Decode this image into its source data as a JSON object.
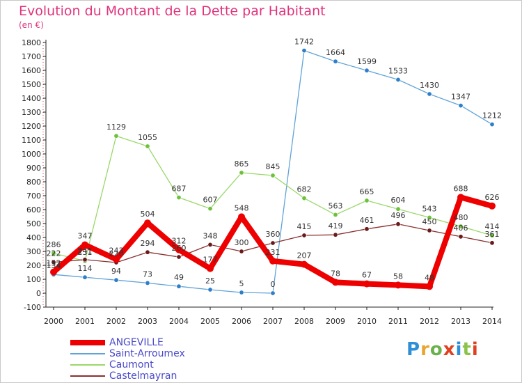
{
  "title": "Evolution du Montant de la Dette par Habitant",
  "subtitle": "(en €)",
  "logo": {
    "text": "Proxiti",
    "colors": [
      "#2f8fd6",
      "#e8a530",
      "#6ab04c",
      "#e04020",
      "#2f8fd6",
      "#8bc34a",
      "#e04020"
    ]
  },
  "chart_data": {
    "type": "line",
    "title": "Evolution du Montant de la Dette par Habitant",
    "ylabel": "(en €)",
    "xlabel": "",
    "x": [
      "2000",
      "2001",
      "2002",
      "2003",
      "2004",
      "2005",
      "2006",
      "2007",
      "2008",
      "2009",
      "2010",
      "2011",
      "2012",
      "2013",
      "2014"
    ],
    "ylim": [
      -100,
      1800
    ],
    "yticks": [
      -100,
      0,
      100,
      200,
      300,
      400,
      500,
      600,
      700,
      800,
      900,
      1000,
      1100,
      1200,
      1300,
      1400,
      1500,
      1600,
      1700,
      1800
    ],
    "grid": false,
    "legend_position": "bottom-left",
    "series": [
      {
        "name": "ANGEVILLE",
        "color": "#ee0000",
        "width": 8,
        "values": [
          152,
          347,
          243,
          504,
          312,
          177,
          548,
          231,
          207,
          78,
          67,
          58,
          48,
          688,
          626
        ],
        "labels": [
          "152",
          "347",
          "243",
          "504",
          "312",
          "177",
          "548",
          "231",
          "207",
          "78",
          "67",
          "58",
          "48",
          "688",
          "626"
        ]
      },
      {
        "name": "Saint-Arroumex",
        "color": "#5fa3d8",
        "width": 1.3,
        "markerColor": "#2f7fc8",
        "values": [
          134,
          114,
          94,
          73,
          49,
          25,
          5,
          0,
          1742,
          1664,
          1599,
          1533,
          1430,
          1347,
          1212
        ],
        "labels": [
          "134",
          "114",
          "94",
          "73",
          "49",
          "25",
          "5",
          "0",
          "1742",
          "1664",
          "1599",
          "1533",
          "1430",
          "1347",
          "1212"
        ]
      },
      {
        "name": "Caumont",
        "color": "#9ad86a",
        "width": 1.3,
        "markerColor": "#6cc23a",
        "values": [
          286,
          231,
          1129,
          1055,
          687,
          607,
          865,
          845,
          682,
          563,
          665,
          604,
          543,
          480,
          414
        ],
        "labels": [
          "286",
          "231",
          "1129",
          "1055",
          "687",
          "607",
          "865",
          "845",
          "682",
          "563",
          "665",
          "604",
          "543",
          "480",
          "414"
        ]
      },
      {
        "name": "Castelmayran",
        "color": "#8a3030",
        "width": 1.3,
        "markerColor": "#6a1a1a",
        "values": [
          222,
          241,
          220,
          294,
          260,
          348,
          300,
          360,
          415,
          419,
          461,
          496,
          450,
          406,
          361
        ],
        "labels": [
          "222",
          "241",
          "220",
          "294",
          "260",
          "348",
          "300",
          "360",
          "415",
          "419",
          "461",
          "496",
          "450",
          "406",
          "361"
        ]
      }
    ]
  }
}
